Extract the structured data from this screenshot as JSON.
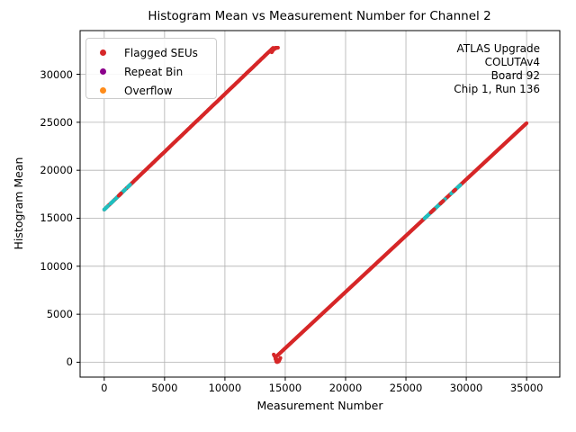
{
  "chart_data": {
    "type": "scatter",
    "title": "Histogram Mean vs Measurement Number for Channel 2",
    "xlabel": "Measurement Number",
    "ylabel": "Histogram Mean",
    "xlim": [
      -2000,
      37750
    ],
    "ylim": [
      -1550,
      34550
    ],
    "xticks": [
      0,
      5000,
      10000,
      15000,
      20000,
      25000,
      30000,
      35000
    ],
    "yticks": [
      0,
      5000,
      10000,
      15000,
      20000,
      25000,
      30000
    ],
    "grid": true,
    "grid_color": "#b0b0b0",
    "axis_color": "#000000",
    "legend": {
      "position": "upper left",
      "items": [
        {
          "label": "Flagged SEUs",
          "color": "#d62728"
        },
        {
          "label": "Repeat Bin",
          "color": "#8b008b"
        },
        {
          "label": "Overflow",
          "color": "#ff8c1a"
        }
      ]
    },
    "annotation": {
      "position": "upper right",
      "lines": [
        "ATLAS Upgrade",
        "COLUTAv4",
        "Board 92",
        "Chip 1, Run 136"
      ]
    },
    "colors": {
      "flagged": "#d62728",
      "unflagged": "#1fbfbf"
    },
    "series": [
      {
        "name": "flagged-ramp-1",
        "color": "#d62728",
        "r": 2,
        "step": 40,
        "segments": [
          [
            0,
            15900,
            14000,
            32760
          ]
        ]
      },
      {
        "name": "flagged-ramp-2",
        "color": "#d62728",
        "r": 2,
        "step": 40,
        "segments": [
          [
            14350,
            700,
            35000,
            24900
          ]
        ]
      },
      {
        "name": "unflagged-ramp-1",
        "color": "#1fbfbf",
        "r": 2,
        "step": 40,
        "segments": [
          [
            0,
            15900,
            300,
            16261
          ],
          [
            500,
            16502,
            800,
            16863
          ],
          [
            950,
            17044,
            1750,
            18007
          ],
          [
            1950,
            18248,
            2150,
            18489
          ]
        ]
      },
      {
        "name": "unflagged-ramp-2",
        "color": "#1fbfbf",
        "r": 2,
        "step": 40,
        "segments": [
          [
            26550,
            14997,
            28250,
            16989
          ],
          [
            28750,
            17575,
            29500,
            18454
          ]
        ]
      },
      {
        "name": "flagged-overlay-dashes",
        "color": "#d62728",
        "r": 2,
        "step": 40,
        "segments": [
          [
            1200,
            17345,
            1400,
            17586
          ],
          [
            27050,
            15583,
            27350,
            15934
          ],
          [
            27850,
            16520,
            28100,
            16813
          ],
          [
            28950,
            17809,
            29100,
            17985
          ]
        ]
      },
      {
        "name": "saturation-cluster-top",
        "color": "#d62728",
        "r": 2,
        "pts": [
          [
            13880,
            32290
          ],
          [
            13920,
            32370
          ],
          [
            13960,
            32450
          ],
          [
            14000,
            32530
          ],
          [
            14040,
            32600
          ],
          [
            14080,
            32660
          ],
          [
            14120,
            32705
          ],
          [
            14160,
            32740
          ],
          [
            14200,
            32760
          ],
          [
            14240,
            32767
          ],
          [
            14280,
            32767
          ],
          [
            14320,
            32767
          ],
          [
            14360,
            32767
          ],
          [
            14400,
            32767
          ],
          [
            14100,
            32620
          ],
          [
            14180,
            32700
          ],
          [
            14260,
            32730
          ],
          [
            14340,
            32745
          ]
        ]
      },
      {
        "name": "wraparound-cluster-bottom",
        "color": "#d62728",
        "r": 2,
        "pts": [
          [
            14040,
            800
          ],
          [
            14080,
            720
          ],
          [
            14120,
            640
          ],
          [
            14160,
            560
          ],
          [
            14200,
            480
          ],
          [
            14240,
            400
          ],
          [
            14280,
            320
          ],
          [
            14320,
            240
          ],
          [
            14360,
            170
          ],
          [
            14400,
            110
          ],
          [
            14440,
            60
          ],
          [
            14480,
            120
          ],
          [
            14520,
            220
          ],
          [
            14560,
            330
          ],
          [
            14600,
            440
          ],
          [
            14180,
            350
          ],
          [
            14220,
            270
          ],
          [
            14260,
            200
          ],
          [
            14300,
            130
          ],
          [
            14340,
            70
          ],
          [
            14380,
            30
          ],
          [
            14240,
            90
          ],
          [
            14280,
            40
          ],
          [
            14320,
            10
          ]
        ]
      }
    ]
  }
}
